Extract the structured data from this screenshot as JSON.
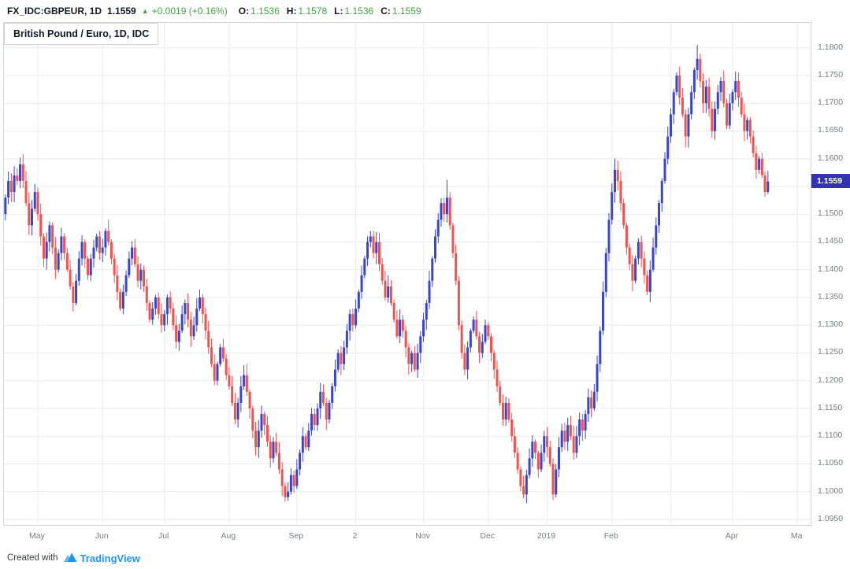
{
  "header": {
    "symbol": "FX_IDC:GBPEUR, 1D",
    "price": "1.1559",
    "direction_icon": "▲",
    "change": "+0.0019 (+0.16%)",
    "ohlc": [
      {
        "label": "O:",
        "value": "1.1536"
      },
      {
        "label": "H:",
        "value": "1.1578"
      },
      {
        "label": "L:",
        "value": "1.1536"
      },
      {
        "label": "C:",
        "value": "1.1559"
      }
    ]
  },
  "legend": "British Pound / Euro, 1D, IDC",
  "price_label": "1.1559",
  "footer": {
    "created_with": "Created with",
    "brand": "TradingView"
  },
  "colors": {
    "up_green_text": "#43a047",
    "brand_blue": "#1f96e8",
    "price_label_bg": "#3333b2",
    "axis_text": "#787b86",
    "frame_border": "#d1d4dc"
  },
  "chart_data": {
    "type": "candlestick",
    "title": "British Pound / Euro, 1D, IDC",
    "symbol": "FX_IDC:GBPEUR",
    "interval": "1D",
    "source": "IDC",
    "last_price": 1.1559,
    "first_open": 1.15,
    "ymin": 1.094,
    "ymax": 1.1845,
    "total_slots": 274,
    "up_color": "#3946c8",
    "down_color": "#ef5350",
    "grid_color": "#e9eaef",
    "y_ticks": [
      1.18,
      1.175,
      1.17,
      1.165,
      1.16,
      1.155,
      1.15,
      1.145,
      1.14,
      1.135,
      1.13,
      1.125,
      1.12,
      1.115,
      1.11,
      1.105,
      1.1,
      1.095
    ],
    "x_ticks": [
      {
        "label": "May",
        "index": 11
      },
      {
        "label": "Jun",
        "index": 33
      },
      {
        "label": "Jul",
        "index": 54
      },
      {
        "label": "Aug",
        "index": 76
      },
      {
        "label": "Sep",
        "index": 99
      },
      {
        "label": "2",
        "index": 119
      },
      {
        "label": "Nov",
        "index": 142
      },
      {
        "label": "Dec",
        "index": 164
      },
      {
        "label": "2019",
        "index": 184
      },
      {
        "label": "Feb",
        "index": 206
      },
      {
        "label": "Apr",
        "index": 247
      },
      {
        "label": "Ma",
        "index": 269
      }
    ],
    "grid_indices": [
      11,
      33,
      54,
      76,
      99,
      119,
      142,
      164,
      184,
      206,
      226,
      247,
      269
    ],
    "closes": [
      1.153,
      1.156,
      1.154,
      1.157,
      1.156,
      1.159,
      1.156,
      1.152,
      1.148,
      1.151,
      1.154,
      1.15,
      1.146,
      1.142,
      1.145,
      1.148,
      1.144,
      1.14,
      1.143,
      1.146,
      1.143,
      1.14,
      1.137,
      1.134,
      1.138,
      1.142,
      1.145,
      1.142,
      1.139,
      1.142,
      1.144,
      1.146,
      1.143,
      1.144,
      1.147,
      1.145,
      1.142,
      1.139,
      1.136,
      1.133,
      1.136,
      1.139,
      1.142,
      1.144,
      1.141,
      1.138,
      1.14,
      1.137,
      1.134,
      1.131,
      1.133,
      1.135,
      1.132,
      1.13,
      1.132,
      1.135,
      1.133,
      1.13,
      1.127,
      1.129,
      1.132,
      1.134,
      1.131,
      1.128,
      1.13,
      1.133,
      1.135,
      1.132,
      1.129,
      1.126,
      1.123,
      1.12,
      1.123,
      1.126,
      1.124,
      1.121,
      1.119,
      1.116,
      1.113,
      1.116,
      1.119,
      1.121,
      1.118,
      1.115,
      1.111,
      1.108,
      1.111,
      1.114,
      1.112,
      1.109,
      1.106,
      1.109,
      1.107,
      1.104,
      1.101,
      1.099,
      1.1,
      1.103,
      1.101,
      1.104,
      1.107,
      1.11,
      1.108,
      1.111,
      1.114,
      1.112,
      1.115,
      1.118,
      1.116,
      1.113,
      1.116,
      1.119,
      1.122,
      1.125,
      1.123,
      1.126,
      1.129,
      1.132,
      1.13,
      1.133,
      1.136,
      1.139,
      1.142,
      1.145,
      1.146,
      1.143,
      1.145,
      1.141,
      1.138,
      1.135,
      1.137,
      1.134,
      1.131,
      1.128,
      1.131,
      1.129,
      1.126,
      1.123,
      1.125,
      1.122,
      1.125,
      1.128,
      1.131,
      1.134,
      1.138,
      1.142,
      1.146,
      1.149,
      1.152,
      1.15,
      1.153,
      1.148,
      1.143,
      1.138,
      1.13,
      1.125,
      1.122,
      1.126,
      1.129,
      1.131,
      1.128,
      1.125,
      1.127,
      1.13,
      1.128,
      1.125,
      1.122,
      1.119,
      1.116,
      1.113,
      1.116,
      1.113,
      1.11,
      1.107,
      1.104,
      1.101,
      1.0995,
      1.103,
      1.106,
      1.109,
      1.107,
      1.104,
      1.107,
      1.11,
      1.108,
      1.105,
      1.0995,
      1.104,
      1.108,
      1.111,
      1.109,
      1.112,
      1.11,
      1.107,
      1.11,
      1.113,
      1.111,
      1.114,
      1.117,
      1.115,
      1.118,
      1.123,
      1.129,
      1.136,
      1.143,
      1.149,
      1.154,
      1.158,
      1.156,
      1.152,
      1.148,
      1.144,
      1.141,
      1.138,
      1.142,
      1.145,
      1.142,
      1.139,
      1.136,
      1.14,
      1.144,
      1.148,
      1.152,
      1.156,
      1.16,
      1.164,
      1.168,
      1.172,
      1.175,
      1.171,
      1.168,
      1.164,
      1.168,
      1.172,
      1.176,
      1.178,
      1.174,
      1.17,
      1.173,
      1.169,
      1.165,
      1.169,
      1.172,
      1.174,
      1.17,
      1.166,
      1.17,
      1.172,
      1.174,
      1.171,
      1.168,
      1.165,
      1.167,
      1.164,
      1.161,
      1.158,
      1.16,
      1.157,
      1.154,
      1.1559
    ],
    "wick_overrides": {
      "5": {
        "high": 1.1602
      },
      "95": {
        "low": 1.0982
      },
      "150": {
        "high": 1.1562
      },
      "176": {
        "low": 1.0988
      },
      "186": {
        "low": 1.0985
      },
      "207": {
        "high": 1.16
      },
      "235": {
        "high": 1.1805
      },
      "259": {
        "high": 1.1578,
        "low": 1.1536
      }
    }
  }
}
